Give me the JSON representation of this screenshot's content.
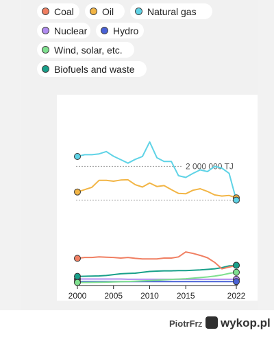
{
  "legend": [
    {
      "row": 0,
      "label": "Coal",
      "color": "#f07f62"
    },
    {
      "row": 0,
      "label": "Oil",
      "color": "#f2b545"
    },
    {
      "row": 0,
      "label": "Natural gas",
      "color": "#5fd3e6"
    },
    {
      "row": 1,
      "label": "Nuclear",
      "color": "#b18cf0"
    },
    {
      "row": 1,
      "label": "Hydro",
      "color": "#4a62d6"
    },
    {
      "row": 2,
      "label": "Wind, solar, etc.",
      "color": "#7fe08f"
    },
    {
      "row": 3,
      "label": "Biofuels and waste",
      "color": "#19a08a"
    }
  ],
  "chart_data": {
    "type": "line",
    "x": [
      2000,
      2001,
      2002,
      2003,
      2004,
      2005,
      2006,
      2007,
      2008,
      2009,
      2010,
      2011,
      2012,
      2013,
      2014,
      2015,
      2016,
      2017,
      2018,
      2019,
      2020,
      2021,
      2022
    ],
    "xticks": [
      2000,
      2005,
      2010,
      2015,
      2022
    ],
    "reference_line": {
      "value": 2000000,
      "label": "2 000 000 TJ"
    },
    "ylim": [
      0,
      2500000
    ],
    "series": [
      {
        "name": "Coal",
        "color": "#f07f62",
        "values": [
          420000,
          435000,
          435000,
          445000,
          440000,
          435000,
          425000,
          435000,
          420000,
          410000,
          410000,
          410000,
          425000,
          425000,
          445000,
          530000,
          505000,
          470000,
          430000,
          350000,
          240000,
          270000,
          300000
        ]
      },
      {
        "name": "Oil",
        "color": "#f2b545",
        "values": [
          1560000,
          1600000,
          1640000,
          1760000,
          1760000,
          1745000,
          1765000,
          1770000,
          1685000,
          1645000,
          1715000,
          1655000,
          1670000,
          1600000,
          1535000,
          1530000,
          1590000,
          1615000,
          1570000,
          1510000,
          1490000,
          1500000,
          1460000
        ]
      },
      {
        "name": "Natural gas",
        "color": "#5fd3e6",
        "values": [
          2170000,
          2200000,
          2200000,
          2215000,
          2255000,
          2175000,
          2115000,
          2055000,
          2120000,
          2170000,
          2420000,
          2150000,
          2085000,
          2085000,
          1840000,
          1810000,
          1880000,
          1940000,
          1910000,
          2000000,
          1970000,
          1880000,
          1420000
        ]
      },
      {
        "name": "Nuclear",
        "color": "#b18cf0",
        "values": [
          65000,
          65000,
          65000,
          65000,
          65000,
          65000,
          65000,
          60000,
          60000,
          60000,
          60000,
          60000,
          60000,
          60000,
          60000,
          60000,
          60000,
          60000,
          60000,
          60000,
          60000,
          60000,
          60000
        ]
      },
      {
        "name": "Hydro",
        "color": "#4a62d6",
        "values": [
          20000,
          20000,
          20000,
          20000,
          20000,
          20000,
          20000,
          20000,
          20000,
          20000,
          20000,
          20000,
          20000,
          20000,
          20000,
          20000,
          20000,
          20000,
          20000,
          20000,
          20000,
          20000,
          20000
        ]
      },
      {
        "name": "Wind, solar, etc.",
        "color": "#7fe08f",
        "values": [
          5000,
          6000,
          7000,
          9000,
          11000,
          14000,
          18000,
          22000,
          27000,
          32000,
          37000,
          45000,
          52000,
          58000,
          64000,
          70000,
          80000,
          90000,
          100000,
          115000,
          135000,
          160000,
          180000
        ]
      },
      {
        "name": "Biofuels and waste",
        "color": "#19a08a",
        "values": [
          110000,
          112000,
          115000,
          118000,
          125000,
          140000,
          155000,
          160000,
          165000,
          180000,
          195000,
          200000,
          205000,
          205000,
          210000,
          210000,
          215000,
          220000,
          230000,
          240000,
          260000,
          290000,
          300000
        ]
      }
    ]
  },
  "footer": {
    "user": "PiotrFr",
    "separator": "z",
    "site": "wykop.pl"
  }
}
